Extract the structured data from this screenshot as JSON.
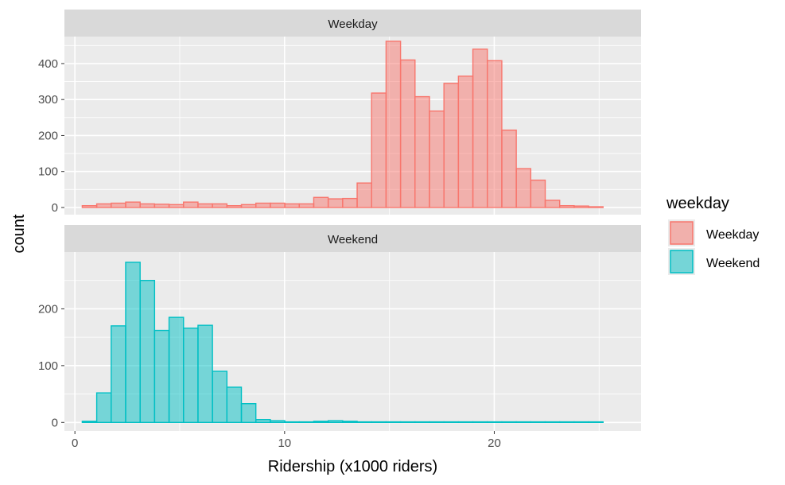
{
  "chart_data": {
    "type": "bar",
    "subtype": "faceted-histogram",
    "xlabel": "Ridership (x1000 riders)",
    "ylabel": "count",
    "xlim": [
      -0.5,
      27.0
    ],
    "x_ticks": [
      0,
      10,
      20
    ],
    "x_tick_labels": [
      "0",
      "10",
      "20"
    ],
    "bin_start": 0.35,
    "bin_width": 0.69,
    "grid": true,
    "legend": {
      "title": "weekday",
      "placement": "right",
      "entries": [
        "Weekday",
        "Weekend"
      ]
    },
    "colors": {
      "Weekday": {
        "fill": "#F8766D",
        "stroke": "#F8766D"
      },
      "Weekend": {
        "fill": "#00BFC4",
        "stroke": "#00BFC4"
      },
      "panel_bg": "#EBEBEB",
      "strip_bg": "#D9D9D9",
      "grid": "#FFFFFF"
    },
    "series": [
      {
        "name": "Weekday",
        "strip_label": "Weekday",
        "ylim": [
          -20,
          475
        ],
        "y_ticks": [
          0,
          100,
          200,
          300,
          400
        ],
        "y_tick_labels": [
          "0",
          "100",
          "200",
          "300",
          "400"
        ],
        "values": [
          5,
          10,
          12,
          15,
          10,
          9,
          8,
          15,
          10,
          10,
          5,
          8,
          12,
          12,
          10,
          10,
          28,
          24,
          25,
          68,
          318,
          462,
          410,
          308,
          268,
          345,
          365,
          440,
          408,
          215,
          108,
          76,
          20,
          5,
          4,
          2
        ]
      },
      {
        "name": "Weekend",
        "strip_label": "Weekend",
        "ylim": [
          -15,
          300
        ],
        "y_ticks": [
          0,
          100,
          200
        ],
        "y_tick_labels": [
          "0",
          "100",
          "200"
        ],
        "values": [
          2,
          52,
          170,
          282,
          250,
          162,
          185,
          166,
          171,
          90,
          62,
          33,
          5,
          3,
          1,
          1,
          2,
          3,
          2,
          1,
          1,
          1,
          1,
          1,
          1,
          1,
          1,
          1,
          1,
          1,
          1,
          1,
          1,
          1,
          1,
          1
        ]
      }
    ]
  }
}
